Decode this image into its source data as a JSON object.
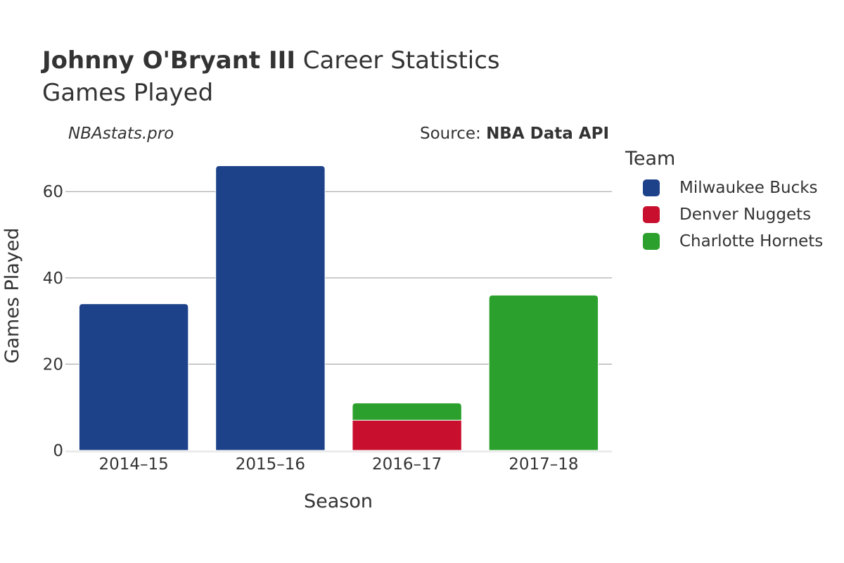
{
  "header": {
    "player": "Johnny O'Bryant III",
    "title_rest": " Career Statistics",
    "subtitle": "Games Played",
    "site": "NBAstats.pro",
    "source_prefix": "Source: ",
    "source_name": "NBA Data API"
  },
  "legend": {
    "title": "Team",
    "items": [
      {
        "label": "Milwaukee Bucks",
        "color": "#1d428a"
      },
      {
        "label": "Denver Nuggets",
        "color": "#c8102e"
      },
      {
        "label": "Charlotte Hornets",
        "color": "#2ca02c"
      }
    ]
  },
  "chart_data": {
    "type": "bar",
    "stacked": true,
    "title": "Johnny O'Bryant III Career Statistics",
    "subtitle": "Games Played",
    "xlabel": "Season",
    "ylabel": "Games Played",
    "categories": [
      "2014–15",
      "2015–16",
      "2016–17",
      "2017–18"
    ],
    "series": [
      {
        "name": "Milwaukee Bucks",
        "color": "#1d428a",
        "values": [
          34,
          66,
          0,
          0
        ]
      },
      {
        "name": "Denver Nuggets",
        "color": "#c8102e",
        "values": [
          0,
          0,
          7,
          0
        ]
      },
      {
        "name": "Charlotte Hornets",
        "color": "#2ca02c",
        "values": [
          0,
          0,
          4,
          36
        ]
      }
    ],
    "yticks": [
      0,
      20,
      40,
      60
    ],
    "ylim": [
      0,
      69.5
    ],
    "grid": true,
    "legend_position": "right"
  }
}
